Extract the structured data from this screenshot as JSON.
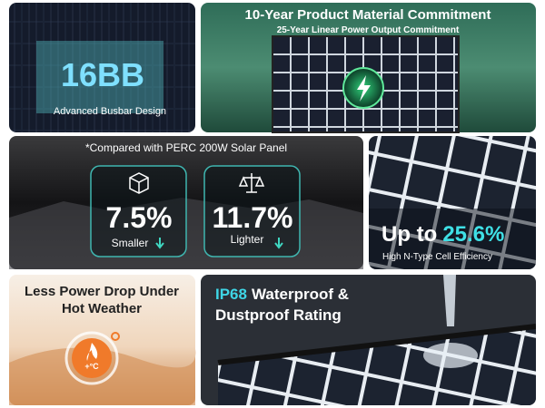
{
  "tiles": {
    "busbar": {
      "title": "16BB",
      "caption": "Advanced Busbar Design"
    },
    "commitment": {
      "title": "10-Year Product Material Commitment",
      "subtitle": "25-Year Linear Power Output Commitment"
    },
    "comparison": {
      "note": "*Compared with PERC 200W Solar Panel",
      "items": [
        {
          "value": "7.5%",
          "label": "Smaller"
        },
        {
          "value": "11.7%",
          "label": "Lighter"
        }
      ]
    },
    "efficiency": {
      "prefix": "Up to",
      "value": "25.6%",
      "caption": "High N-Type Cell Efficiency"
    },
    "heat": {
      "lines": [
        "Less Power Drop Under",
        "Hot Weather"
      ],
      "icon": "+°C"
    },
    "waterproof": {
      "rating": "IP68",
      "lines": [
        "Waterproof &",
        "Dustproof Rating"
      ]
    }
  }
}
